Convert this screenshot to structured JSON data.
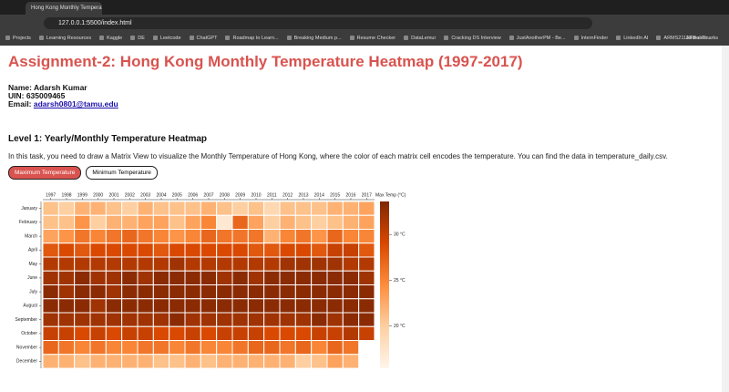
{
  "browser": {
    "tab_title": "Hong Kong Monthly Temperatu",
    "url": "127.0.0.1:5500/index.html",
    "bookmarks": [
      "Projects",
      "Learning Resources",
      "Kaggle",
      "DE",
      "Leetcode",
      "ChatGPT",
      "Roadmap to Learn...",
      "Breaking Medium p...",
      "Resume Checker",
      "DataLemur",
      "Cracking DS Interview",
      "JustAnotherPM - Be...",
      "InternFinder",
      "LinkedIn AI",
      "ARMS2111/Real-Ti..."
    ],
    "all_bookmarks": "All Bookmarks"
  },
  "page": {
    "title": "Assignment-2: Hong Kong Monthly Temperature Heatmap (1997-2017)",
    "name": "Name: Adarsh Kumar",
    "uin": "UIN: 635009465",
    "email_label": "Email:",
    "email": "adarsh0801@tamu.edu",
    "level_title": "Level 1: Yearly/Monthly Temperature Heatmap",
    "description": "In this task, you need to draw a Matrix View to visualize the Monthly Temperature of Hong Kong, where the color of each matrix cell encodes the temperature. You can find the data in temperature_daily.csv.",
    "buttons": [
      "Maximum Temperature",
      "Minimum Temperature"
    ]
  },
  "chart_data": {
    "type": "heatmap",
    "x_categories": [
      "1997",
      "1998",
      "1999",
      "2000",
      "2001",
      "2002",
      "2003",
      "2004",
      "2005",
      "2006",
      "2007",
      "2008",
      "2009",
      "2010",
      "2011",
      "2012",
      "2013",
      "2014",
      "2015",
      "2016",
      "2017"
    ],
    "y_categories": [
      "January",
      "February",
      "March",
      "April",
      "May",
      "June",
      "July",
      "August",
      "September",
      "October",
      "November",
      "December"
    ],
    "values": [
      [
        21,
        20,
        22,
        22,
        21,
        20,
        22,
        21,
        21,
        21,
        22,
        21,
        20,
        21,
        19,
        21,
        21,
        21,
        22,
        22,
        23
      ],
      [
        21,
        21,
        24,
        20,
        22,
        22,
        23,
        23,
        21,
        23,
        25,
        17,
        27,
        23,
        20,
        22,
        21,
        20,
        21,
        22,
        23
      ],
      [
        23,
        24,
        26,
        25,
        26,
        27,
        26,
        25,
        24,
        25,
        27,
        26,
        26,
        26,
        22,
        25,
        26,
        24,
        27,
        25,
        25
      ],
      [
        28,
        29,
        28,
        29,
        29,
        29,
        29,
        28,
        29,
        29,
        29,
        29,
        29,
        28,
        28,
        29,
        29,
        28,
        30,
        30,
        28
      ],
      [
        31,
        31,
        31,
        31,
        31,
        31,
        31,
        31,
        32,
        31,
        31,
        31,
        31,
        31,
        31,
        32,
        32,
        32,
        32,
        31,
        31
      ],
      [
        32,
        32,
        33,
        32,
        32,
        33,
        32,
        33,
        33,
        33,
        33,
        32,
        33,
        32,
        33,
        33,
        33,
        33,
        33,
        33,
        32
      ],
      [
        33,
        32,
        33,
        33,
        32,
        33,
        33,
        33,
        33,
        33,
        33,
        33,
        33,
        33,
        33,
        33,
        33,
        33,
        33,
        33,
        33
      ],
      [
        33,
        33,
        33,
        32,
        33,
        33,
        33,
        33,
        33,
        33,
        33,
        33,
        33,
        33,
        33,
        33,
        33,
        33,
        33,
        33,
        33
      ],
      [
        32,
        32,
        32,
        32,
        32,
        32,
        32,
        32,
        33,
        32,
        32,
        32,
        32,
        32,
        32,
        32,
        32,
        33,
        32,
        33,
        33
      ],
      [
        30,
        30,
        29,
        30,
        29,
        30,
        30,
        29,
        29,
        30,
        29,
        30,
        30,
        30,
        29,
        29,
        29,
        30,
        30,
        31,
        30
      ],
      [
        27,
        26,
        25,
        26,
        25,
        25,
        26,
        26,
        25,
        26,
        25,
        25,
        26,
        27,
        27,
        26,
        27,
        25,
        27,
        26,
        null
      ],
      [
        22,
        22,
        21,
        22,
        22,
        22,
        22,
        21,
        21,
        22,
        21,
        22,
        22,
        22,
        22,
        22,
        20,
        21,
        23,
        22,
        null
      ]
    ],
    "colors": [
      "#fff5eb",
      "#fdd0a2",
      "#fd8d3c",
      "#d94801",
      "#7f2704"
    ],
    "colorbar": {
      "title": "Max Temp (°C)",
      "lim": [
        15.4,
        33.6
      ],
      "ticks": [
        {
          "value": 20,
          "label": "20 °C"
        },
        {
          "value": 25,
          "label": "25 °C"
        },
        {
          "value": 30,
          "label": "30 °C"
        }
      ]
    }
  }
}
